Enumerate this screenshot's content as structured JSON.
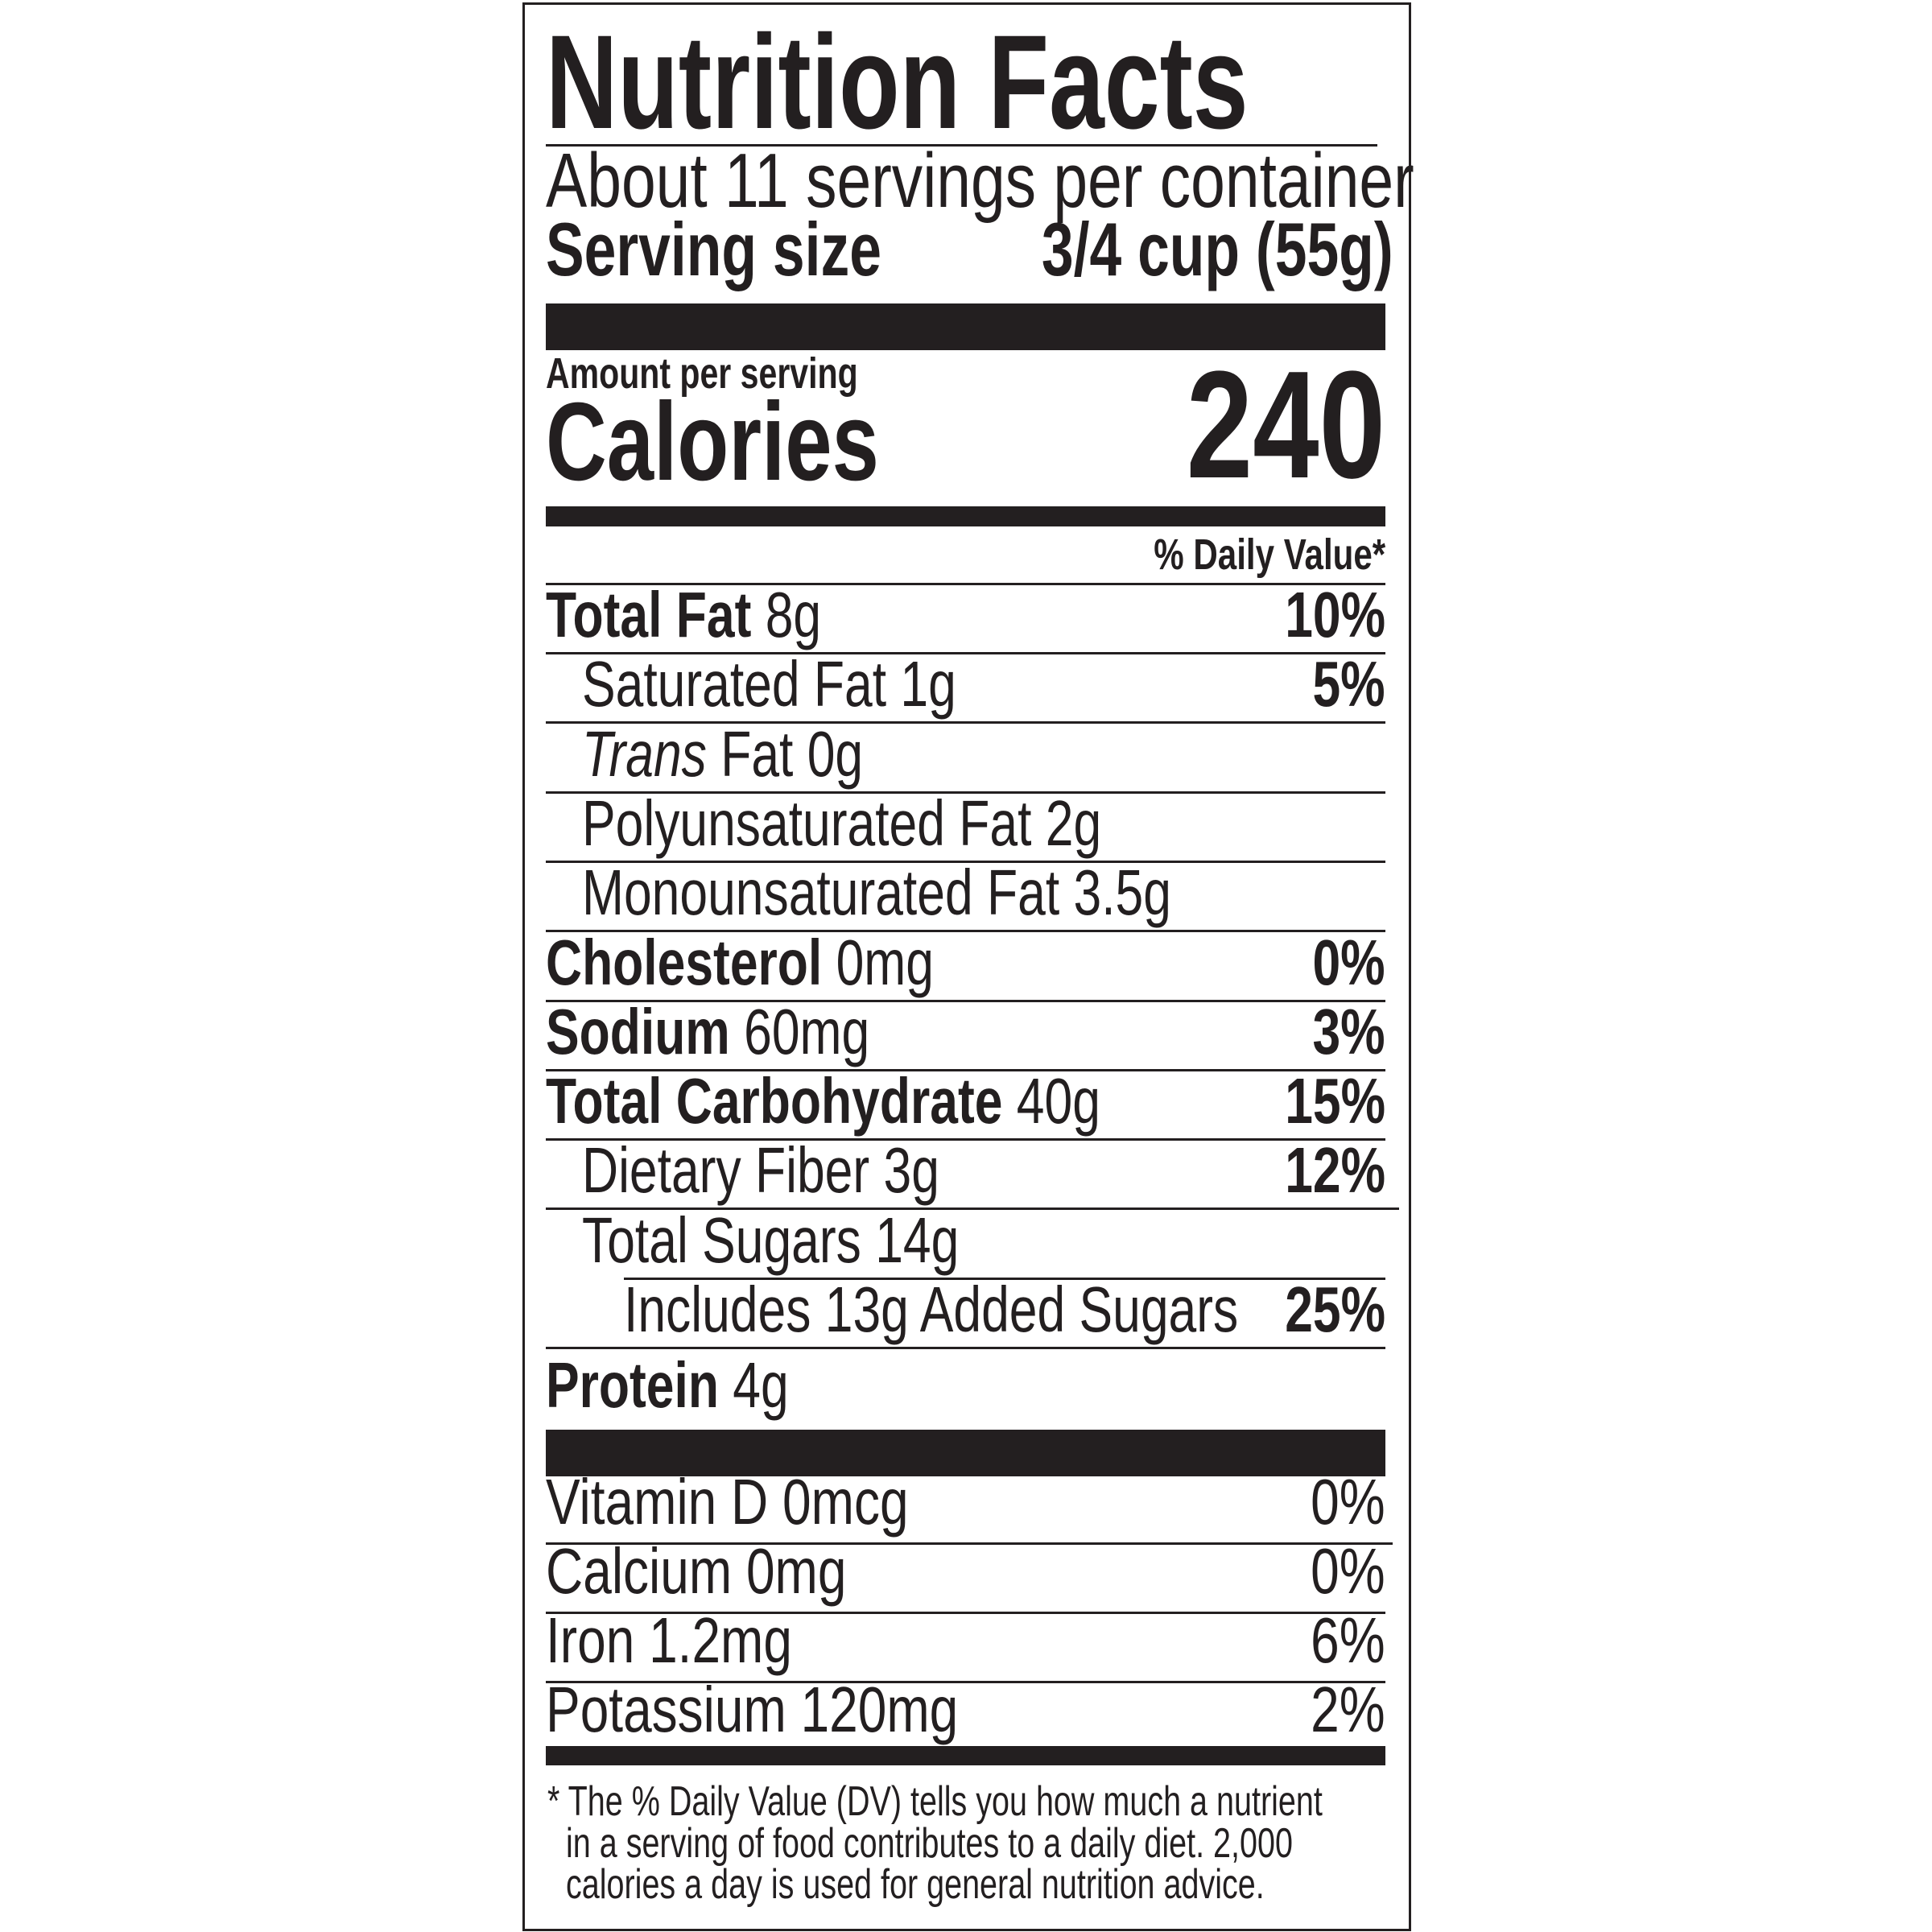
{
  "title": "Nutrition Facts",
  "servings_per_container": "About 11 servings per container",
  "serving_size_label": "Serving size",
  "serving_size_value": "3/4 cup (55g)",
  "amount_per_serving": "Amount per serving",
  "calories_label": "Calories",
  "calories_value": "240",
  "daily_value_header": "% Daily Value*",
  "nutrients": [
    {
      "name": "Total Fat",
      "amount": "8g",
      "dv": "10%",
      "level": 0
    },
    {
      "name": "Saturated Fat 1g",
      "dv": "5%",
      "level": 1,
      "regular": true
    },
    {
      "italic": "Trans",
      "name": " Fat 0g",
      "level": 1,
      "regular": true
    },
    {
      "name": "Polyunsaturated Fat 2g",
      "level": 1,
      "regular": true
    },
    {
      "name": "Monounsaturated Fat 3.5g",
      "level": 1,
      "regular": true
    },
    {
      "name": "Cholesterol",
      "amount": "0mg",
      "dv": "0%",
      "level": 0
    },
    {
      "name": "Sodium",
      "amount": "60mg",
      "dv": "3%",
      "level": 0
    },
    {
      "name": "Total Carbohydrate",
      "amount": "40g",
      "dv": "15%",
      "level": 0
    },
    {
      "name": "Dietary Fiber 3g",
      "dv": "12%",
      "level": 1,
      "regular": true
    },
    {
      "name": "Total Sugars 14g",
      "level": 1,
      "regular": true
    },
    {
      "name": "Includes 13g Added Sugars",
      "dv": "25%",
      "level": 2,
      "regular": true
    },
    {
      "name": "Protein",
      "amount": "4g",
      "level": 0
    }
  ],
  "vitamins": [
    {
      "name": "Vitamin D 0mcg",
      "dv": "0%"
    },
    {
      "name": "Calcium 0mg",
      "dv": "0%"
    },
    {
      "name": "Iron 1.2mg",
      "dv": "6%"
    },
    {
      "name": "Potassium 120mg",
      "dv": "2%"
    }
  ],
  "footnote": [
    "* The % Daily Value (DV) tells you how much a nutrient",
    "in a serving of food contributes to a daily diet. 2,000",
    "calories a day is used for general nutrition advice."
  ]
}
